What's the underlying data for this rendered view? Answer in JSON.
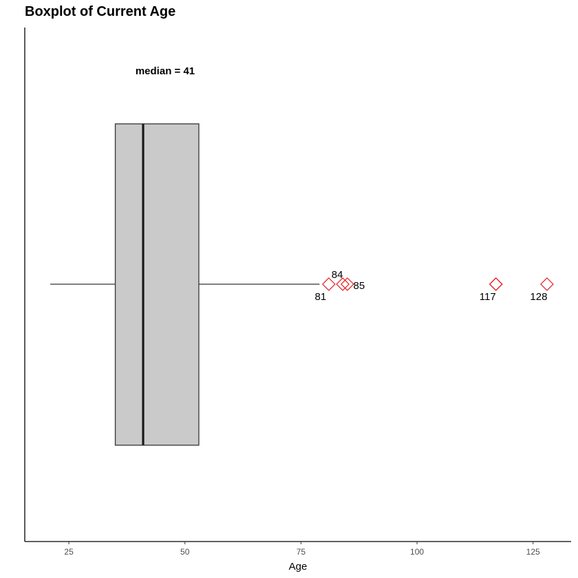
{
  "chart_data": {
    "type": "boxplot",
    "title": "Boxplot of Current Age",
    "xlabel": "Age",
    "ylabel": "",
    "xlim": [
      15.5,
      133.2
    ],
    "xticks": [
      25,
      50,
      75,
      100,
      125
    ],
    "xtick_labels": [
      "25",
      "50",
      "75",
      "100",
      "125"
    ],
    "grid": false,
    "legend": "none",
    "box": {
      "whisker_low": 21,
      "q1": 35,
      "median": 41,
      "q3": 53,
      "whisker_high": 79
    },
    "outliers": [
      {
        "value": 81,
        "label": "81",
        "label_pos": "below-left"
      },
      {
        "value": 84,
        "label": "84",
        "label_pos": "above-left"
      },
      {
        "value": 85,
        "label": "85",
        "label_pos": "right"
      },
      {
        "value": 117,
        "label": "117",
        "label_pos": "below-left"
      },
      {
        "value": 117,
        "label": "",
        "label_pos": "none"
      },
      {
        "value": 128,
        "label": "128",
        "label_pos": "below-left"
      }
    ],
    "annotation": "median = 41",
    "colors": {
      "box_fill": "#cacaca",
      "box_stroke": "#333333",
      "median_line": "#1a1a1a",
      "outlier": "#e41a1c"
    }
  }
}
